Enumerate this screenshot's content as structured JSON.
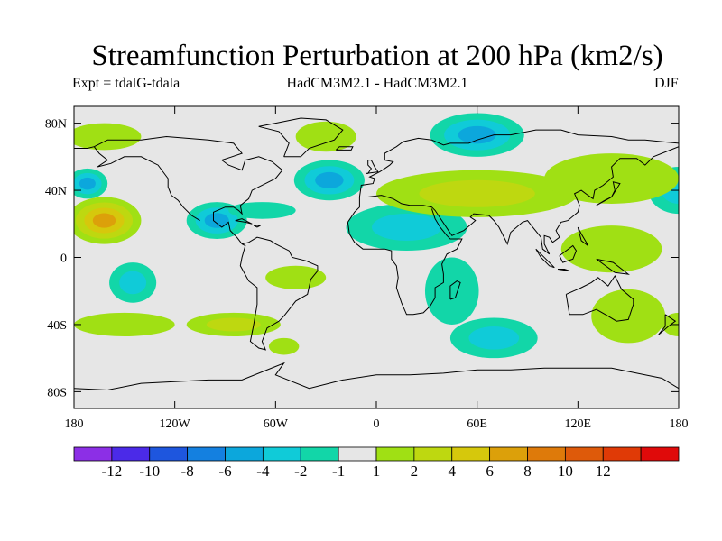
{
  "title": "Streamfunction Perturbation at 200 hPa (km2/s)",
  "left_subtitle": "Expt = tdalG-tdala",
  "center_subtitle": "HadCM3M2.1 - HadCM3M2.1",
  "right_subtitle": "DJF",
  "map": {
    "lon_range": [
      -180,
      180
    ],
    "lat_range": [
      -90,
      90
    ],
    "lat_ticks": [
      {
        "value": 80,
        "label": "80N"
      },
      {
        "value": 40,
        "label": "40N"
      },
      {
        "value": 0,
        "label": "0"
      },
      {
        "value": -40,
        "label": "40S"
      },
      {
        "value": -80,
        "label": "80S"
      }
    ],
    "lon_ticks": [
      {
        "value": -180,
        "label": "180"
      },
      {
        "value": -120,
        "label": "120W"
      },
      {
        "value": -60,
        "label": "60W"
      },
      {
        "value": 0,
        "label": "0"
      },
      {
        "value": 60,
        "label": "60E"
      },
      {
        "value": 120,
        "label": "120E"
      },
      {
        "value": 180,
        "label": "180"
      }
    ],
    "background_color": "#e6e6e6",
    "anomalies": [
      {
        "name": "n-pacific",
        "lon": -162,
        "lat": 22,
        "rx": 22,
        "ry": 14,
        "sign": 1,
        "levels": [
          1,
          2,
          4,
          6
        ]
      },
      {
        "name": "ne-pacific",
        "lon": -172,
        "lat": 44,
        "rx": 12,
        "ry": 9,
        "sign": -1,
        "levels": [
          1,
          2,
          4
        ]
      },
      {
        "name": "alaska",
        "lon": -162,
        "lat": 72,
        "rx": 22,
        "ry": 8,
        "sign": 1,
        "levels": [
          1
        ]
      },
      {
        "name": "greenland",
        "lon": -30,
        "lat": 72,
        "rx": 18,
        "ry": 9,
        "sign": 1,
        "levels": [
          1
        ]
      },
      {
        "name": "n-atlantic",
        "lon": -28,
        "lat": 46,
        "rx": 21,
        "ry": 12,
        "sign": -1,
        "levels": [
          1,
          2,
          4
        ]
      },
      {
        "name": "ne-america",
        "lon": -95,
        "lat": 22,
        "rx": 18,
        "ry": 11,
        "sign": -1,
        "levels": [
          1,
          2,
          4
        ]
      },
      {
        "name": "caribbean",
        "lon": -68,
        "lat": 28,
        "rx": 20,
        "ry": 5,
        "sign": -1,
        "levels": [
          1
        ]
      },
      {
        "name": "siberia",
        "lon": 60,
        "lat": 73,
        "rx": 28,
        "ry": 13,
        "sign": -1,
        "levels": [
          1,
          2,
          4
        ]
      },
      {
        "name": "africa-north",
        "lon": 18,
        "lat": 18,
        "rx": 36,
        "ry": 14,
        "sign": -1,
        "levels": [
          1,
          2
        ]
      },
      {
        "name": "africa-south",
        "lon": 45,
        "lat": -20,
        "rx": 16,
        "ry": 20,
        "sign": -1,
        "levels": [
          1
        ]
      },
      {
        "name": "s-indian",
        "lon": 70,
        "lat": -48,
        "rx": 26,
        "ry": 12,
        "sign": -1,
        "levels": [
          1,
          2
        ]
      },
      {
        "name": "w-pacific-south",
        "lon": -145,
        "lat": -15,
        "rx": 14,
        "ry": 12,
        "sign": -1,
        "levels": [
          1,
          2
        ]
      },
      {
        "name": "pacific-north-edge",
        "lon": 180,
        "lat": 40,
        "rx": 18,
        "ry": 14,
        "sign": -1,
        "levels": [
          1,
          2
        ]
      },
      {
        "name": "mid-atlantic",
        "lon": -48,
        "lat": -12,
        "rx": 18,
        "ry": 7,
        "sign": 1,
        "levels": [
          1
        ]
      },
      {
        "name": "s-america",
        "lon": -85,
        "lat": -40,
        "rx": 28,
        "ry": 7,
        "sign": 1,
        "levels": [
          1,
          2
        ]
      },
      {
        "name": "s-atlantic",
        "lon": -55,
        "lat": -53,
        "rx": 9,
        "ry": 5,
        "sign": 1,
        "levels": [
          1
        ]
      },
      {
        "name": "eurasia",
        "lon": 60,
        "lat": 38,
        "rx": 60,
        "ry": 14,
        "sign": 1,
        "levels": [
          1,
          2
        ]
      },
      {
        "name": "east-asia",
        "lon": 140,
        "lat": 47,
        "rx": 40,
        "ry": 15,
        "sign": 1,
        "levels": [
          1
        ]
      },
      {
        "name": "tropical-w-pac",
        "lon": 140,
        "lat": 5,
        "rx": 30,
        "ry": 14,
        "sign": 1,
        "levels": [
          1
        ]
      },
      {
        "name": "australia-south",
        "lon": 150,
        "lat": -35,
        "rx": 22,
        "ry": 16,
        "sign": 1,
        "levels": [
          1
        ]
      },
      {
        "name": "e-pacific-south",
        "lon": 180,
        "lat": -40,
        "rx": 10,
        "ry": 7,
        "sign": 1,
        "levels": [
          1
        ]
      },
      {
        "name": "s-pacific-west",
        "lon": -150,
        "lat": -40,
        "rx": 30,
        "ry": 7,
        "sign": 1,
        "levels": [
          1
        ]
      }
    ]
  },
  "colorbar": {
    "colors": [
      "#8c2fe6",
      "#4b2ae8",
      "#1e56de",
      "#1480e0",
      "#0ca7dc",
      "#10cbd8",
      "#12d6a8",
      "#e6e6e6",
      "#a0e014",
      "#bed810",
      "#d6c80c",
      "#dca00a",
      "#de7a0a",
      "#de5a0a",
      "#e03a06",
      "#e00a0a"
    ],
    "labels": [
      "-12",
      "-10",
      "-8",
      "-6",
      "-4",
      "-2",
      "-1",
      "1",
      "2",
      "4",
      "6",
      "8",
      "10",
      "12"
    ],
    "level_colors": {
      "1": "#a0e014",
      "2": "#bed810",
      "4": "#d6c80c",
      "6": "#dca00a",
      "-1": "#12d6a8",
      "-2": "#10cbd8",
      "-4": "#0ca7dc"
    }
  }
}
